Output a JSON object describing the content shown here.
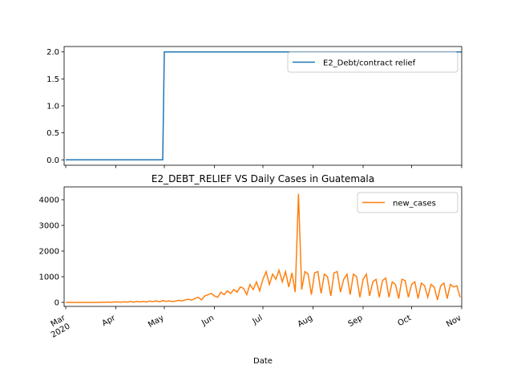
{
  "chart_data": [
    {
      "type": "line",
      "series": [
        {
          "name": "E2_Debt/contract relief",
          "color": "#1f77b4",
          "x": [
            0,
            60,
            61,
            245
          ],
          "values": [
            0,
            0,
            2,
            2
          ]
        }
      ],
      "xlim": [
        -1,
        245
      ],
      "ylim": [
        -0.1,
        2.1
      ],
      "yticks": [
        {
          "value": 0,
          "label": "0.0"
        },
        0.5,
        {
          "value": 1,
          "label": "1.0"
        },
        1.5,
        {
          "value": 2,
          "label": "2.0"
        }
      ],
      "legend": "upper right"
    },
    {
      "type": "line",
      "title": "E2_DEBT_RELIEF VS Daily Cases in Guatemala",
      "xlabel": "Date",
      "series": [
        {
          "name": "new_cases",
          "color": "#ff7f0e",
          "x": [
            0,
            2,
            4,
            6,
            8,
            10,
            12,
            14,
            16,
            18,
            20,
            22,
            24,
            26,
            28,
            30,
            32,
            34,
            36,
            38,
            40,
            42,
            44,
            46,
            48,
            50,
            52,
            54,
            56,
            58,
            60,
            62,
            64,
            66,
            68,
            70,
            72,
            74,
            76,
            78,
            80,
            82,
            84,
            86,
            88,
            90,
            92,
            94,
            96,
            98,
            100,
            102,
            104,
            106,
            108,
            110,
            112,
            114,
            116,
            118,
            120,
            122,
            124,
            126,
            128,
            130,
            132,
            134,
            136,
            138,
            140,
            142,
            144,
            146,
            148,
            150,
            152,
            154,
            156,
            158,
            160,
            162,
            164,
            166,
            168,
            170,
            172,
            174,
            176,
            178,
            180,
            182,
            184,
            186,
            188,
            190,
            192,
            194,
            196,
            198,
            200,
            202,
            204,
            206,
            208,
            210,
            212,
            214,
            216,
            218,
            220,
            222,
            224,
            226,
            228,
            230,
            232,
            234,
            236,
            238,
            240,
            242,
            244
          ],
          "values": [
            0,
            0,
            0,
            0,
            0,
            0,
            0,
            0,
            0,
            0,
            1,
            2,
            5,
            10,
            6,
            15,
            20,
            8,
            25,
            12,
            30,
            10,
            35,
            20,
            40,
            18,
            50,
            30,
            60,
            20,
            70,
            40,
            60,
            30,
            50,
            80,
            60,
            100,
            120,
            90,
            150,
            200,
            100,
            250,
            300,
            350,
            250,
            200,
            400,
            300,
            450,
            350,
            500,
            400,
            600,
            550,
            300,
            700,
            500,
            800,
            450,
            900,
            1200,
            700,
            1100,
            900,
            1250,
            800,
            1200,
            600,
            1150,
            400,
            4230,
            500,
            1200,
            1100,
            300,
            1150,
            1200,
            350,
            1100,
            1000,
            250,
            1150,
            1200,
            400,
            900,
            1100,
            300,
            1100,
            1000,
            200,
            900,
            1100,
            250,
            800,
            900,
            200,
            850,
            950,
            200,
            800,
            700,
            150,
            900,
            850,
            200,
            700,
            800,
            150,
            750,
            650,
            200,
            700,
            600,
            100,
            650,
            750,
            150,
            700,
            600,
            650,
            200
          ]
        }
      ],
      "xlim": [
        -1,
        245
      ],
      "ylim": [
        -156,
        4500
      ],
      "xticks": [
        {
          "value": 0,
          "label": "Mar\n2020"
        },
        {
          "value": 31,
          "label": "Apr"
        },
        {
          "value": 61,
          "label": "May"
        },
        {
          "value": 92,
          "label": "Jun"
        },
        {
          "value": 122,
          "label": "Jul"
        },
        {
          "value": 153,
          "label": "Aug"
        },
        {
          "value": 184,
          "label": "Sep"
        },
        {
          "value": 214,
          "label": "Oct"
        },
        {
          "value": 245,
          "label": "Nov"
        }
      ],
      "yticks": [
        0,
        1000,
        2000,
        3000,
        4000
      ],
      "legend": "upper right"
    }
  ]
}
